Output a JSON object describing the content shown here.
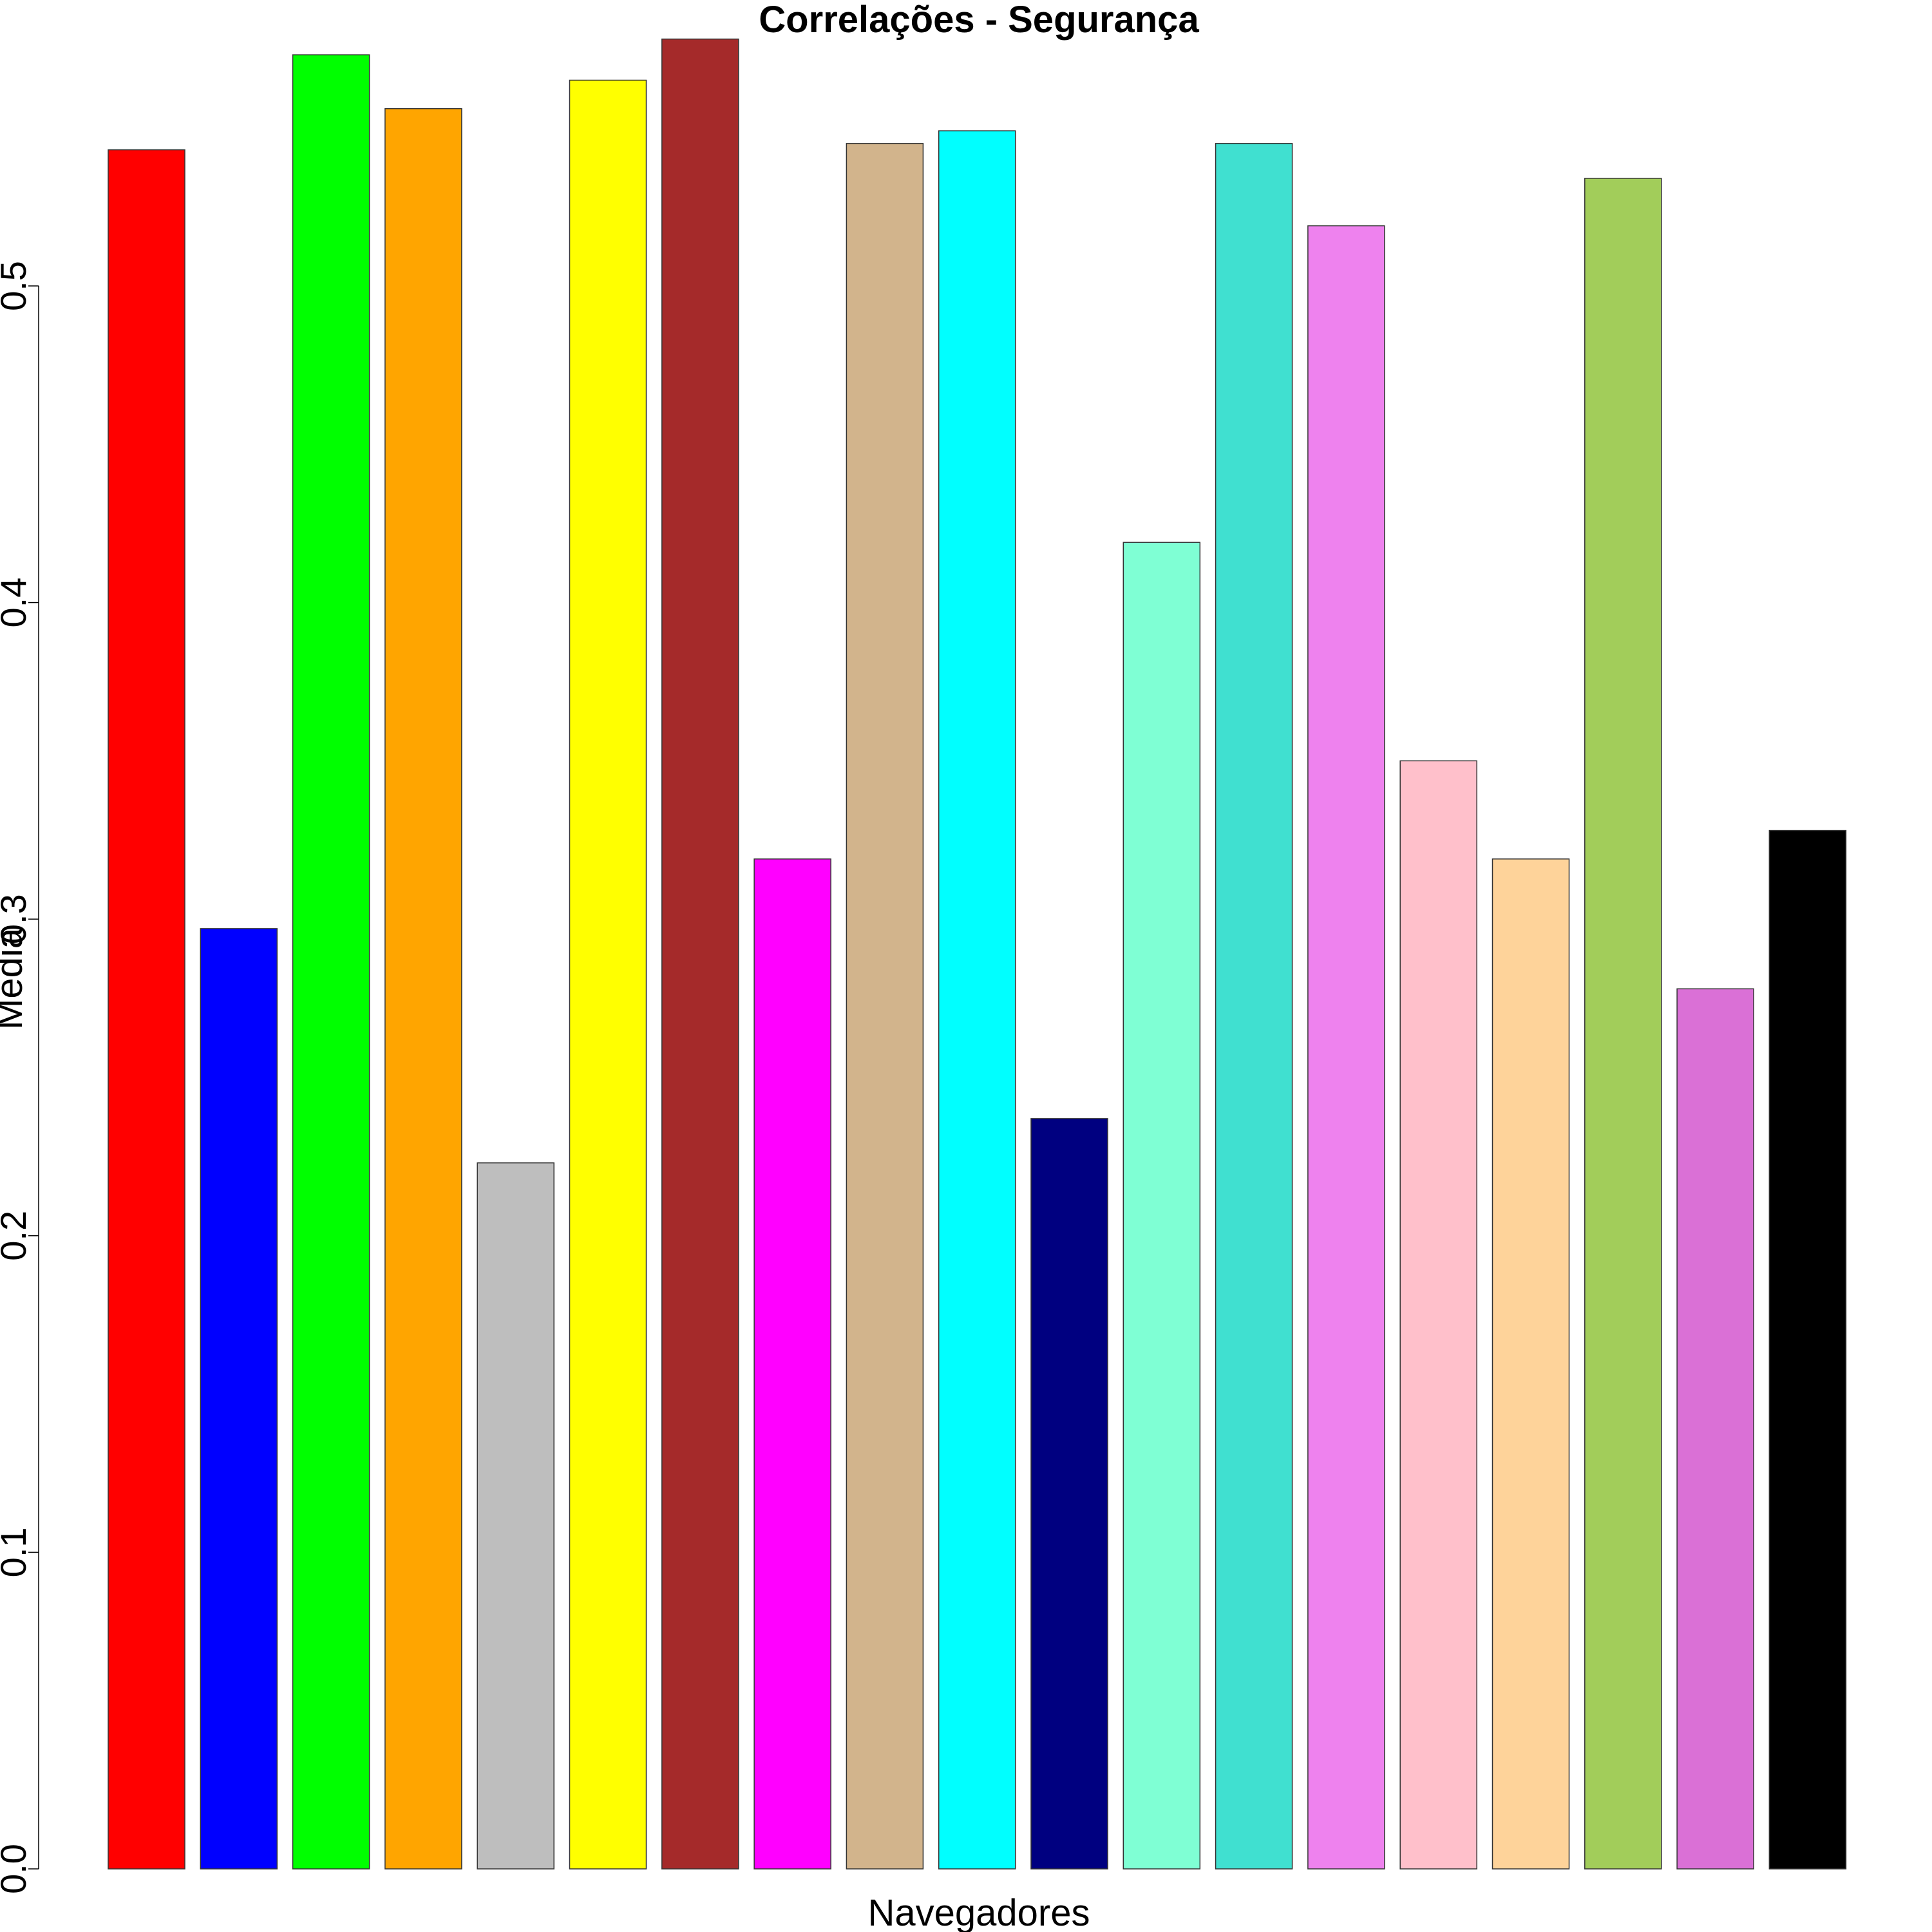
{
  "chart_data": {
    "type": "bar",
    "title": "Correlações - Segurança",
    "xlabel": "Navegadores",
    "ylabel": "Media",
    "ylim": [
      0,
      0.58
    ],
    "y_ticks": [
      {
        "value": 0.0,
        "label": "0.0"
      },
      {
        "value": 0.1,
        "label": "0.1"
      },
      {
        "value": 0.2,
        "label": "0.2"
      },
      {
        "value": 0.3,
        "label": "0.3"
      },
      {
        "value": 0.4,
        "label": "0.4"
      },
      {
        "value": 0.5,
        "label": "0.5"
      }
    ],
    "grid": false,
    "legend": "none",
    "values": [
      0.543,
      0.297,
      0.573,
      0.556,
      0.223,
      0.565,
      0.578,
      0.319,
      0.545,
      0.549,
      0.237,
      0.419,
      0.545,
      0.519,
      0.35,
      0.319,
      0.534,
      0.278,
      0.328
    ],
    "colors": [
      "#ff0000",
      "#0000ff",
      "#00ff00",
      "#ffa500",
      "#bebebe",
      "#ffff00",
      "#a52a2a",
      "#ff00ff",
      "#d2b48c",
      "#00ffff",
      "#000080",
      "#7fffd4",
      "#40e0d0",
      "#ee82ee",
      "#ffc0cb",
      "#fed39a",
      "#a2cd5a",
      "#da70d6",
      "#000000"
    ]
  }
}
